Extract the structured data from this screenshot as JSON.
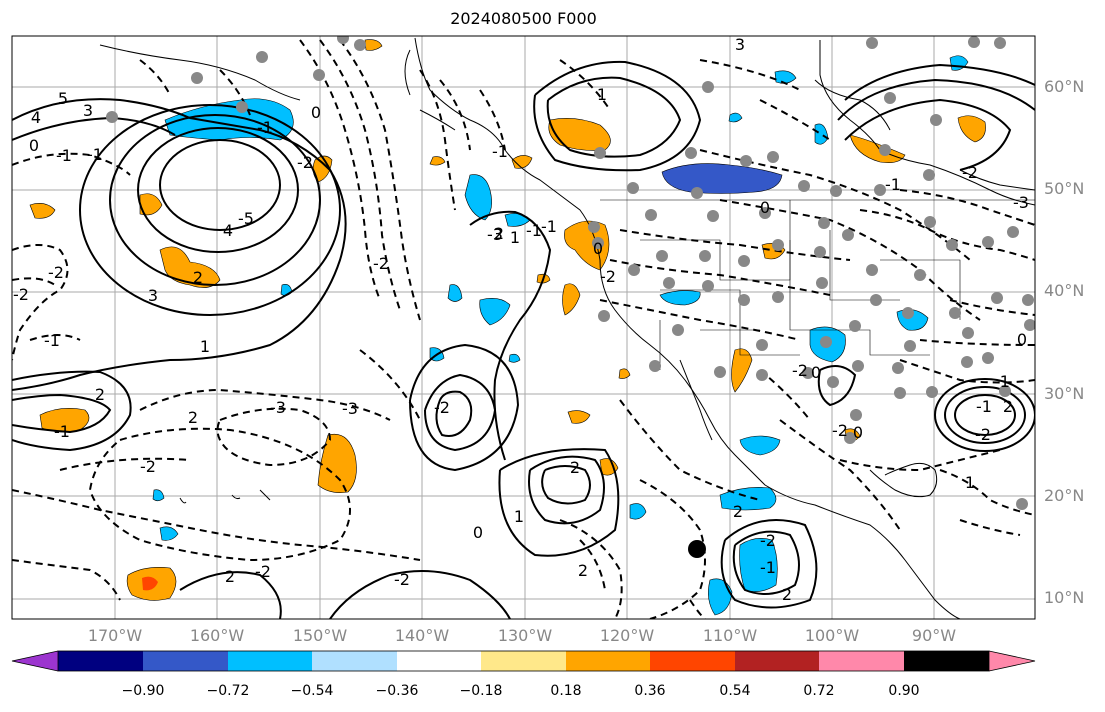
{
  "title": "2024080500 F000",
  "lat_labels": [
    "60°N",
    "50°N",
    "40°N",
    "30°N",
    "20°N",
    "10°N"
  ],
  "lon_labels": [
    "170°W",
    "160°W",
    "150°W",
    "140°W",
    "130°W",
    "120°W",
    "110°W",
    "100°W",
    "90°W"
  ],
  "colorbar": {
    "ticks": [
      "−0.90",
      "−0.72",
      "−0.54",
      "−0.36",
      "−0.18",
      "0.18",
      "0.36",
      "0.54",
      "0.72",
      "0.90"
    ],
    "colors": [
      "#9c35cf",
      "#000080",
      "#3458c8",
      "#00bfff",
      "#b0e0ff",
      "#ffffff",
      "#ffe88a",
      "#ffa500",
      "#ff4500",
      "#b22222",
      "#ff88aa"
    ]
  },
  "contour_labels": [
    "5",
    "3",
    "4",
    "-1",
    "0",
    "-1",
    "4",
    "-5",
    "3",
    "-2",
    "2",
    "-2",
    "-1",
    "2",
    "-1",
    "-2",
    "-3",
    "1",
    "2",
    "-3",
    "2",
    "-2",
    "-2",
    "2",
    "1",
    "-1",
    "-3",
    "-2",
    "1",
    "0",
    "1",
    "2",
    "-2",
    "-1",
    "2",
    "2",
    "-2",
    "0",
    "-2",
    "1",
    "-2",
    "2",
    "-1",
    "-1",
    "0",
    "-3",
    "-2",
    "-1",
    "3",
    "0",
    "-2",
    "-1",
    "-1",
    "2",
    "0",
    "-2",
    "-2",
    "0",
    "-1",
    "0"
  ],
  "colors": {
    "positive_fill": "#ffa500",
    "negative_fill": "#00bfff",
    "strong_negative_fill": "#3458c8",
    "station_dot": "#888888"
  }
}
